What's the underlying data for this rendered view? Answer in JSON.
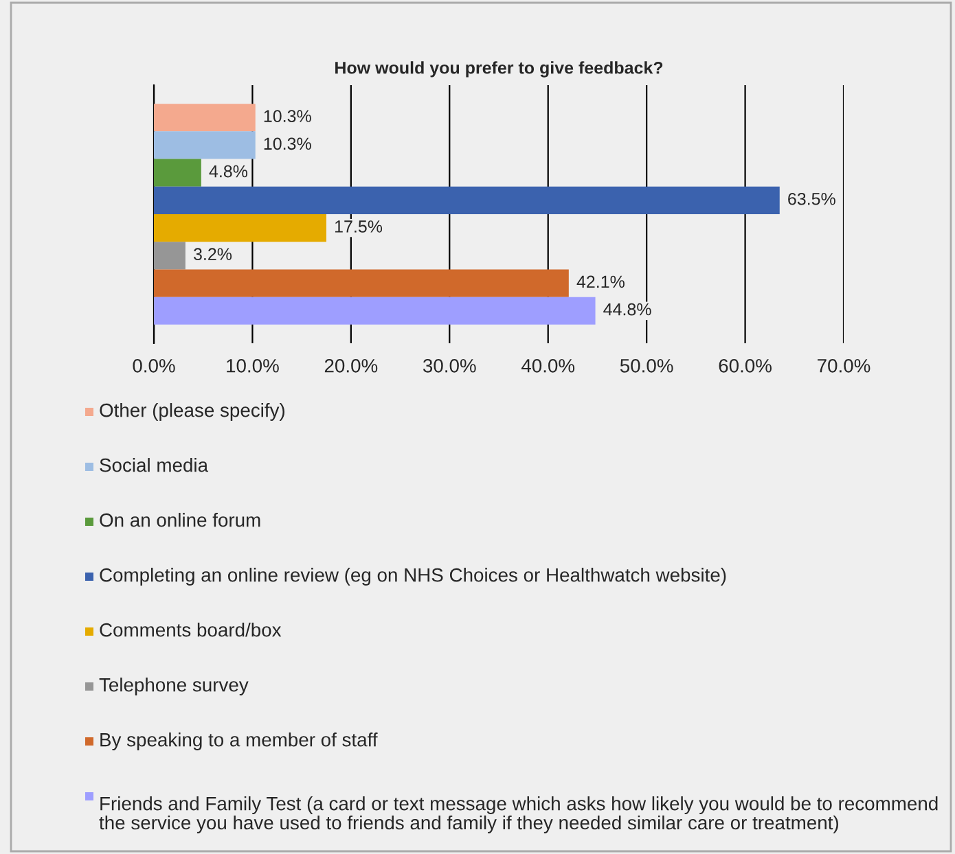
{
  "chart_data": {
    "type": "bar",
    "orientation": "horizontal",
    "title": "How would you prefer to give feedback?",
    "categories": [
      null
    ],
    "series": [
      {
        "name": "Other (please specify)",
        "color": "#f4a98e",
        "values": [
          10.3
        ],
        "value_labels": [
          "10.3%"
        ]
      },
      {
        "name": "Social media",
        "color": "#9dbde3",
        "values": [
          10.3
        ],
        "value_labels": [
          "10.3%"
        ]
      },
      {
        "name": "On an online forum",
        "color": "#5a9a3c",
        "values": [
          4.8
        ],
        "value_labels": [
          "4.8%"
        ]
      },
      {
        "name": "Completing an online review (eg on NHS Choices or Healthwatch website)",
        "color": "#3b62ae",
        "values": [
          63.5
        ],
        "value_labels": [
          "63.5%"
        ]
      },
      {
        "name": "Comments board/box",
        "color": "#e5ab00",
        "values": [
          17.5
        ],
        "value_labels": [
          "17.5%"
        ]
      },
      {
        "name": "Telephone survey",
        "color": "#969696",
        "values": [
          3.2
        ],
        "value_labels": [
          "3.2%"
        ]
      },
      {
        "name": "By speaking to a member of staff",
        "color": "#d0692b",
        "values": [
          42.1
        ],
        "value_labels": [
          "42.1%"
        ]
      },
      {
        "name": "Friends and Family Test (a card or text message which asks how likely you would be to recommend the service you have used to friends and family if they needed similar care or treatment)",
        "color": "#9e9eff",
        "values": [
          44.8
        ],
        "value_labels": [
          "44.8%"
        ]
      }
    ],
    "xlim": [
      0,
      70
    ],
    "xticks": [
      {
        "value": 0,
        "label": "0.0%"
      },
      {
        "value": 10,
        "label": "10.0%"
      },
      {
        "value": 20,
        "label": "20.0%"
      },
      {
        "value": 30,
        "label": "30.0%"
      },
      {
        "value": 40,
        "label": "40.0%"
      },
      {
        "value": 50,
        "label": "50.0%"
      },
      {
        "value": 60,
        "label": "60.0%"
      },
      {
        "value": 70,
        "label": "70.0%"
      }
    ],
    "grid": "x",
    "legend": "bottom"
  }
}
